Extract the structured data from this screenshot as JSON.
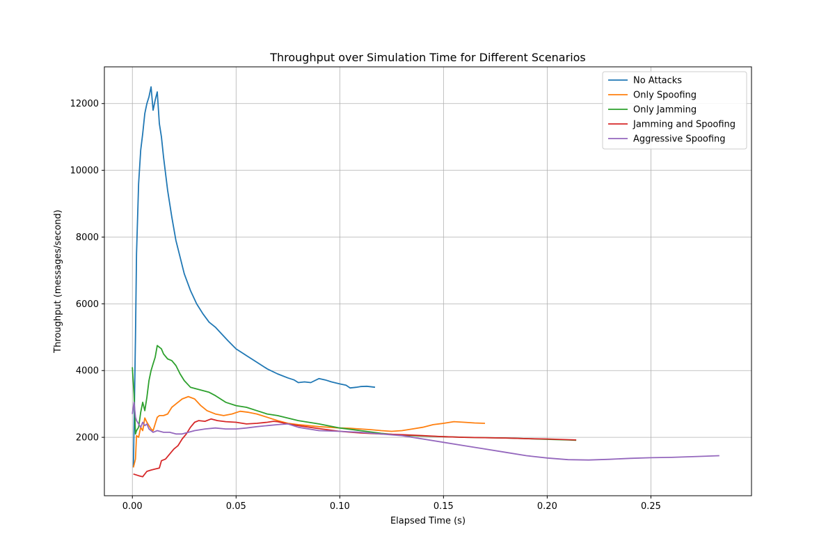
{
  "chart_data": {
    "type": "line",
    "title": "Throughput over Simulation Time for Different Scenarios",
    "xlabel": "Elapsed Time (s)",
    "ylabel": "Throughput (messages/second)",
    "xlim": [
      -0.0135,
      0.2985
    ],
    "ylim": [
      250,
      13100
    ],
    "xticks": [
      0.0,
      0.05,
      0.1,
      0.15,
      0.2,
      0.25
    ],
    "xtick_labels": [
      "0.00",
      "0.05",
      "0.10",
      "0.15",
      "0.20",
      "0.25"
    ],
    "yticks": [
      2000,
      4000,
      6000,
      8000,
      10000,
      12000
    ],
    "ytick_labels": [
      "2000",
      "4000",
      "6000",
      "8000",
      "10000",
      "12000"
    ],
    "grid": true,
    "legend_position": "top-right",
    "series": [
      {
        "name": "No Attacks",
        "color": "#1f77b4",
        "x": [
          0.0005,
          0.001,
          0.0015,
          0.002,
          0.003,
          0.004,
          0.005,
          0.006,
          0.007,
          0.008,
          0.009,
          0.01,
          0.011,
          0.012,
          0.013,
          0.014,
          0.015,
          0.017,
          0.019,
          0.021,
          0.023,
          0.025,
          0.028,
          0.031,
          0.034,
          0.037,
          0.04,
          0.043,
          0.046,
          0.05,
          0.055,
          0.06,
          0.065,
          0.07,
          0.075,
          0.078,
          0.08,
          0.083,
          0.086,
          0.09,
          0.093,
          0.096,
          0.1,
          0.103,
          0.105,
          0.108,
          0.11,
          0.113,
          0.117
        ],
        "y": [
          1100,
          3000,
          5000,
          7500,
          9600,
          10600,
          11100,
          11700,
          12000,
          12200,
          12500,
          11800,
          12100,
          12350,
          11400,
          11000,
          10400,
          9400,
          8600,
          7900,
          7400,
          6900,
          6400,
          6000,
          5700,
          5450,
          5300,
          5100,
          4900,
          4650,
          4450,
          4250,
          4050,
          3900,
          3780,
          3720,
          3640,
          3660,
          3640,
          3760,
          3720,
          3660,
          3600,
          3560,
          3480,
          3500,
          3520,
          3530,
          3500
        ]
      },
      {
        "name": "Only Spoofing",
        "color": "#ff7f0e",
        "x": [
          0.0005,
          0.0015,
          0.002,
          0.003,
          0.004,
          0.005,
          0.006,
          0.007,
          0.008,
          0.009,
          0.01,
          0.011,
          0.012,
          0.013,
          0.015,
          0.017,
          0.019,
          0.021,
          0.024,
          0.027,
          0.03,
          0.033,
          0.036,
          0.04,
          0.044,
          0.048,
          0.052,
          0.056,
          0.06,
          0.065,
          0.07,
          0.075,
          0.08,
          0.085,
          0.09,
          0.095,
          0.1,
          0.105,
          0.11,
          0.115,
          0.12,
          0.125,
          0.13,
          0.135,
          0.14,
          0.145,
          0.15,
          0.155,
          0.16,
          0.165,
          0.17
        ],
        "y": [
          1100,
          1350,
          2050,
          2000,
          2300,
          2200,
          2580,
          2450,
          2350,
          2250,
          2200,
          2400,
          2600,
          2650,
          2650,
          2700,
          2900,
          3000,
          3150,
          3220,
          3150,
          2950,
          2800,
          2700,
          2650,
          2700,
          2780,
          2750,
          2700,
          2600,
          2500,
          2420,
          2380,
          2350,
          2320,
          2300,
          2280,
          2270,
          2250,
          2230,
          2200,
          2180,
          2200,
          2250,
          2300,
          2380,
          2420,
          2470,
          2450,
          2430,
          2420
        ]
      },
      {
        "name": "Only Jamming",
        "color": "#2ca02c",
        "x": [
          0.0,
          0.0008,
          0.0015,
          0.002,
          0.003,
          0.004,
          0.005,
          0.006,
          0.007,
          0.008,
          0.009,
          0.01,
          0.011,
          0.012,
          0.013,
          0.014,
          0.015,
          0.017,
          0.019,
          0.021,
          0.023,
          0.025,
          0.028,
          0.031,
          0.034,
          0.037,
          0.04,
          0.045,
          0.05,
          0.055,
          0.06,
          0.065,
          0.07,
          0.08,
          0.09,
          0.1,
          0.11,
          0.12,
          0.13,
          0.14,
          0.15,
          0.16,
          0.17,
          0.18,
          0.19,
          0.2,
          0.21,
          0.214
        ],
        "y": [
          4100,
          3300,
          2100,
          2200,
          2300,
          2750,
          3050,
          2800,
          3200,
          3700,
          4000,
          4200,
          4400,
          4750,
          4700,
          4650,
          4500,
          4350,
          4300,
          4150,
          3900,
          3700,
          3500,
          3450,
          3400,
          3350,
          3250,
          3050,
          2950,
          2900,
          2800,
          2700,
          2650,
          2500,
          2400,
          2280,
          2200,
          2120,
          2060,
          2040,
          2020,
          2000,
          1990,
          1980,
          1960,
          1940,
          1920,
          1910
        ]
      },
      {
        "name": "Jamming and Spoofing",
        "color": "#d62728",
        "x": [
          0.0005,
          0.003,
          0.005,
          0.007,
          0.009,
          0.011,
          0.013,
          0.014,
          0.016,
          0.018,
          0.02,
          0.022,
          0.024,
          0.026,
          0.028,
          0.03,
          0.032,
          0.035,
          0.038,
          0.041,
          0.045,
          0.05,
          0.055,
          0.06,
          0.065,
          0.068,
          0.07,
          0.075,
          0.08,
          0.09,
          0.1,
          0.11,
          0.12,
          0.13,
          0.14,
          0.15,
          0.16,
          0.17,
          0.18,
          0.19,
          0.2,
          0.21,
          0.214
        ],
        "y": [
          900,
          850,
          820,
          980,
          1020,
          1050,
          1080,
          1300,
          1350,
          1500,
          1650,
          1750,
          1950,
          2100,
          2300,
          2450,
          2500,
          2480,
          2550,
          2500,
          2470,
          2450,
          2400,
          2420,
          2450,
          2480,
          2470,
          2400,
          2350,
          2260,
          2180,
          2130,
          2100,
          2080,
          2050,
          2020,
          2000,
          1990,
          1980,
          1960,
          1950,
          1930,
          1920
        ]
      },
      {
        "name": "Aggressive Spoofing",
        "color": "#9467bd",
        "x": [
          0.0,
          0.0008,
          0.0015,
          0.002,
          0.003,
          0.004,
          0.005,
          0.006,
          0.007,
          0.008,
          0.009,
          0.01,
          0.012,
          0.015,
          0.018,
          0.021,
          0.024,
          0.027,
          0.03,
          0.035,
          0.04,
          0.045,
          0.05,
          0.055,
          0.06,
          0.065,
          0.07,
          0.075,
          0.08,
          0.09,
          0.1,
          0.11,
          0.12,
          0.13,
          0.14,
          0.15,
          0.16,
          0.17,
          0.18,
          0.19,
          0.2,
          0.21,
          0.22,
          0.23,
          0.24,
          0.25,
          0.26,
          0.27,
          0.283
        ],
        "y": [
          2700,
          3050,
          2600,
          2500,
          2400,
          2300,
          2450,
          2350,
          2400,
          2250,
          2200,
          2150,
          2200,
          2150,
          2150,
          2100,
          2100,
          2150,
          2200,
          2250,
          2280,
          2250,
          2250,
          2280,
          2320,
          2350,
          2380,
          2400,
          2300,
          2200,
          2180,
          2150,
          2100,
          2050,
          1950,
          1850,
          1750,
          1650,
          1550,
          1450,
          1380,
          1330,
          1320,
          1340,
          1370,
          1390,
          1400,
          1420,
          1450
        ]
      }
    ]
  }
}
